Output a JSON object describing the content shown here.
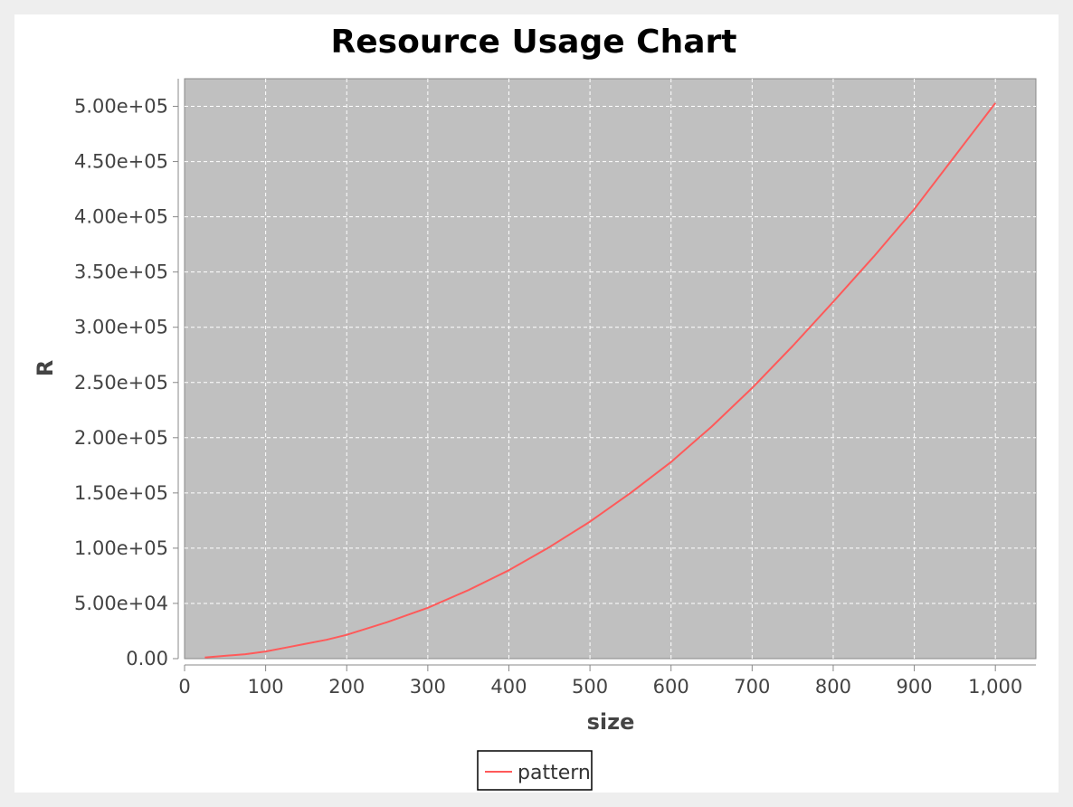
{
  "chart_data": {
    "type": "line",
    "title": "Resource Usage Chart",
    "xlabel": "size",
    "ylabel": "R",
    "xlim": [
      0,
      1050
    ],
    "ylim": [
      0,
      525000
    ],
    "x_ticks": [
      0,
      100,
      200,
      300,
      400,
      500,
      600,
      700,
      800,
      900,
      1000
    ],
    "x_tick_labels": [
      "0",
      "100",
      "200",
      "300",
      "400",
      "500",
      "600",
      "700",
      "800",
      "900",
      "1,000"
    ],
    "y_ticks": [
      0,
      50000,
      100000,
      150000,
      200000,
      250000,
      300000,
      350000,
      400000,
      450000,
      500000
    ],
    "y_tick_labels": [
      "0.00",
      "5.00e+04",
      "1.00e+05",
      "1.50e+05",
      "2.00e+05",
      "2.50e+05",
      "3.00e+05",
      "3.50e+05",
      "4.00e+05",
      "4.50e+05",
      "5.00e+05"
    ],
    "grid": true,
    "legend_position": "bottom-center",
    "plot_background": "#c0c0c0",
    "series": [
      {
        "name": "pattern",
        "color": "#ff5a5a",
        "x": [
          25,
          50,
          75,
          100,
          125,
          150,
          175,
          200,
          250,
          300,
          350,
          400,
          450,
          500,
          550,
          600,
          650,
          700,
          750,
          800,
          850,
          900,
          950,
          1000
        ],
        "y": [
          1000,
          2500,
          4000,
          6500,
          10000,
          13500,
          17000,
          21500,
          33000,
          46000,
          62000,
          80000,
          101000,
          124000,
          150000,
          178000,
          210000,
          245000,
          283000,
          323000,
          364000,
          407000,
          455000,
          503000
        ]
      }
    ]
  }
}
